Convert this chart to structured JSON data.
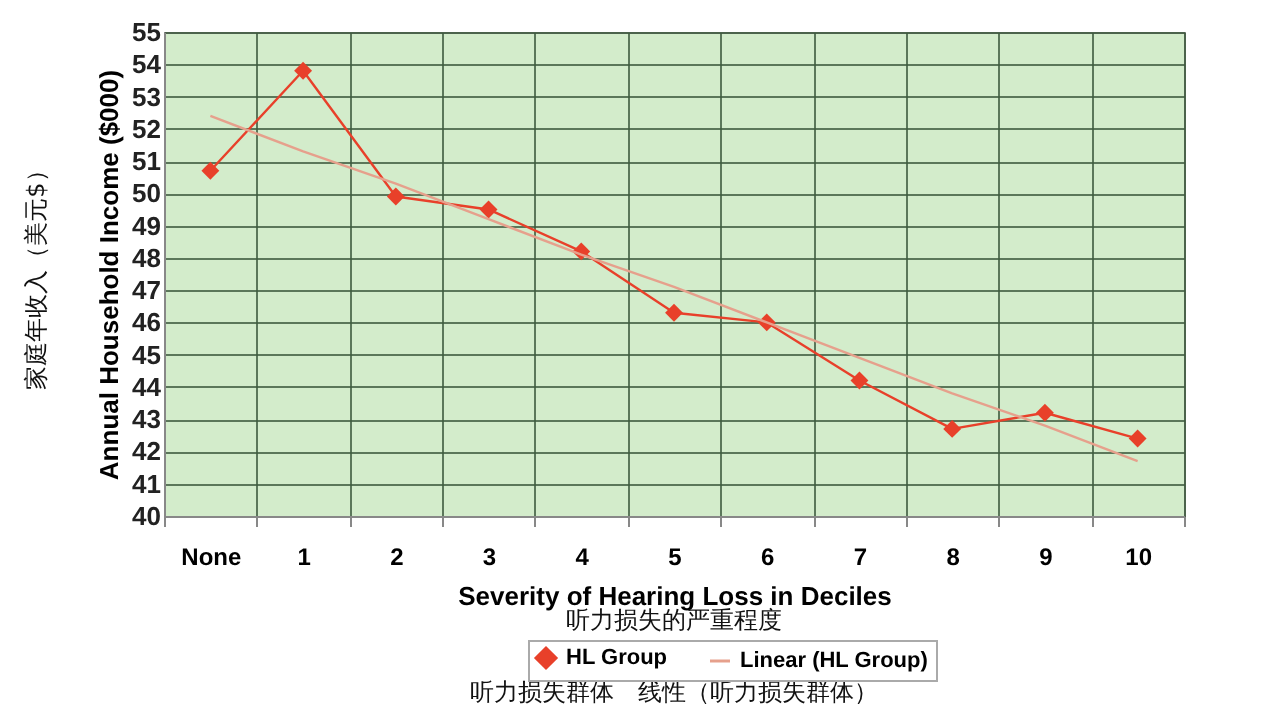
{
  "chart_data": {
    "type": "line",
    "categories": [
      "None",
      "1",
      "2",
      "3",
      "4",
      "5",
      "6",
      "7",
      "8",
      "9",
      "10"
    ],
    "series": [
      {
        "name": "HL Group",
        "color": "#e8402a",
        "marker": "diamond",
        "values": [
          50.7,
          53.8,
          49.9,
          49.5,
          48.2,
          46.3,
          46.0,
          44.2,
          42.7,
          43.2,
          42.4
        ]
      },
      {
        "name": "Linear (HL Group)",
        "color": "#e6a08c",
        "marker": "none",
        "values": [
          52.4,
          51.3,
          50.3,
          49.2,
          48.1,
          47.1,
          46.0,
          44.9,
          43.8,
          42.8,
          41.7
        ]
      }
    ],
    "xlabel": "Severity of Hearing Loss in Deciles",
    "ylabel": "Annual Household Income ($000)",
    "annotations": [
      "家庭年收入（美元$）",
      "听力损失的严重程度",
      "听力损失群体　线性（听力损失群体）"
    ],
    "ylim": [
      40,
      55
    ],
    "yticks": [
      40,
      41,
      42,
      43,
      44,
      45,
      46,
      47,
      48,
      49,
      50,
      51,
      52,
      53,
      54,
      55
    ],
    "grid": true,
    "legend": "bottom",
    "line_style": "solid"
  }
}
